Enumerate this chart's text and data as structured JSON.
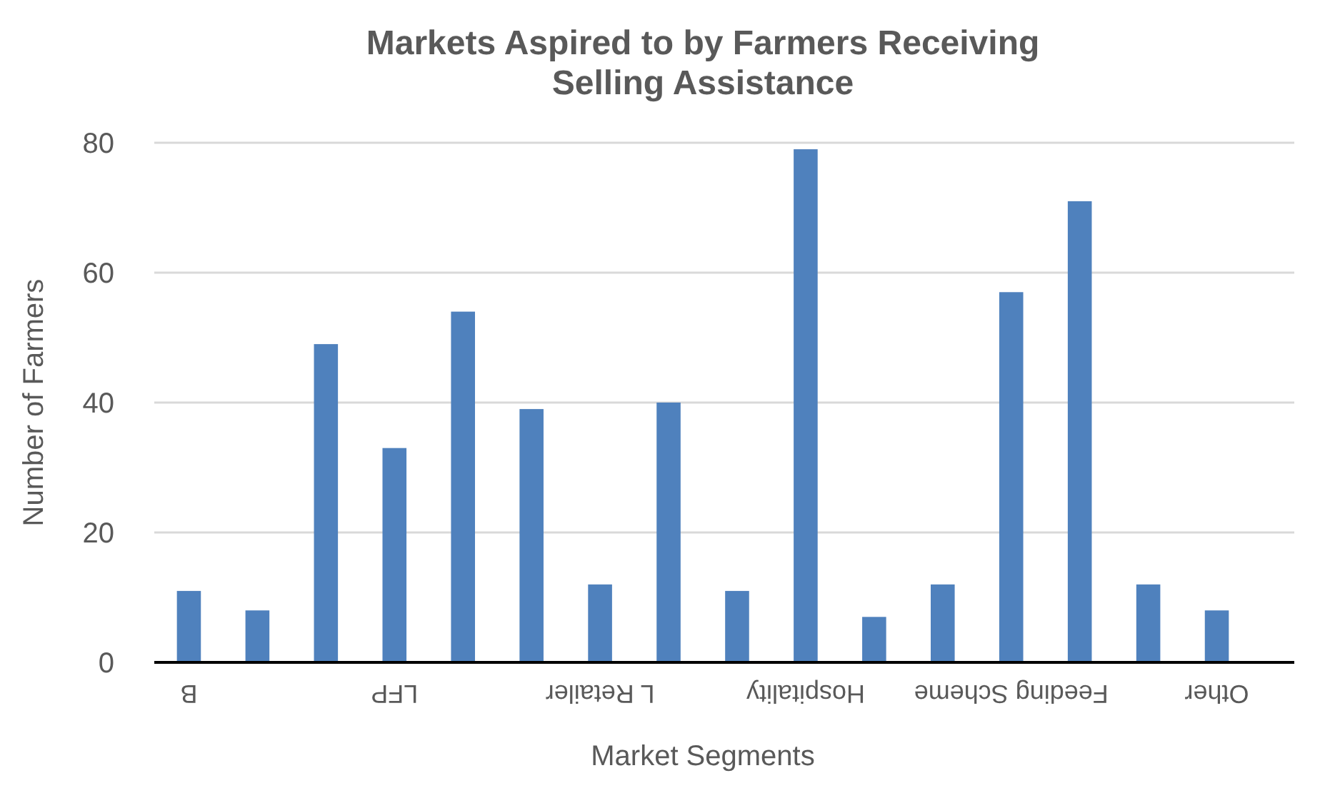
{
  "chart_data": {
    "type": "bar",
    "title": "Markets Aspired to by Farmers Receiving Selling Assistance",
    "xlabel": "Market Segments",
    "ylabel": "Number of Farmers",
    "categories": [
      "B",
      null,
      null,
      "LFP",
      null,
      null,
      "L Retailer",
      null,
      null,
      "Hospitality",
      null,
      null,
      "Feeding Scheme",
      null,
      null,
      "Other"
    ],
    "values": [
      11,
      8,
      49,
      33,
      54,
      39,
      12,
      40,
      11,
      79,
      7,
      12,
      57,
      71,
      12,
      8
    ],
    "color": "#4f81bd",
    "ylim": [
      0,
      80
    ],
    "yticks": [
      0,
      20,
      40,
      60,
      80
    ],
    "grid": "y"
  }
}
